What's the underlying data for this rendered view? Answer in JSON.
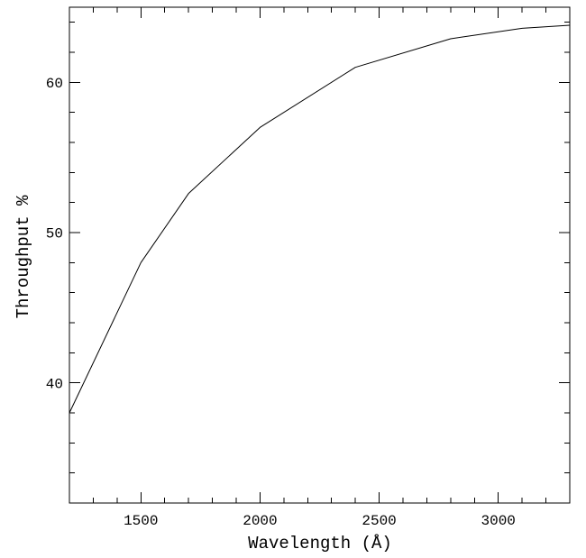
{
  "figure": {
    "background_color": "#ffffff",
    "axis_color": "#000000",
    "text_color": "#000000"
  },
  "chart_data": {
    "type": "line",
    "title": "",
    "xlabel": "Wavelength (Å)",
    "ylabel": "Throughput %",
    "xlim": [
      1200,
      3300
    ],
    "ylim": [
      32,
      65
    ],
    "x_major_ticks": [
      1500,
      2000,
      2500,
      3000
    ],
    "x_minor_step": 100,
    "y_major_ticks": [
      40,
      50,
      60
    ],
    "y_minor_step": 2,
    "grid": "off",
    "legend": "none",
    "tick_style": "inward, mirrored on top and right axes",
    "line_color": "#000000",
    "line_width": 1,
    "series": [
      {
        "name": "throughput",
        "x": [
          1200,
          1500,
          1700,
          2000,
          2400,
          2800,
          3100,
          3300
        ],
        "y": [
          38.0,
          48.0,
          52.6,
          57.0,
          61.0,
          62.9,
          63.6,
          63.8
        ]
      }
    ]
  }
}
